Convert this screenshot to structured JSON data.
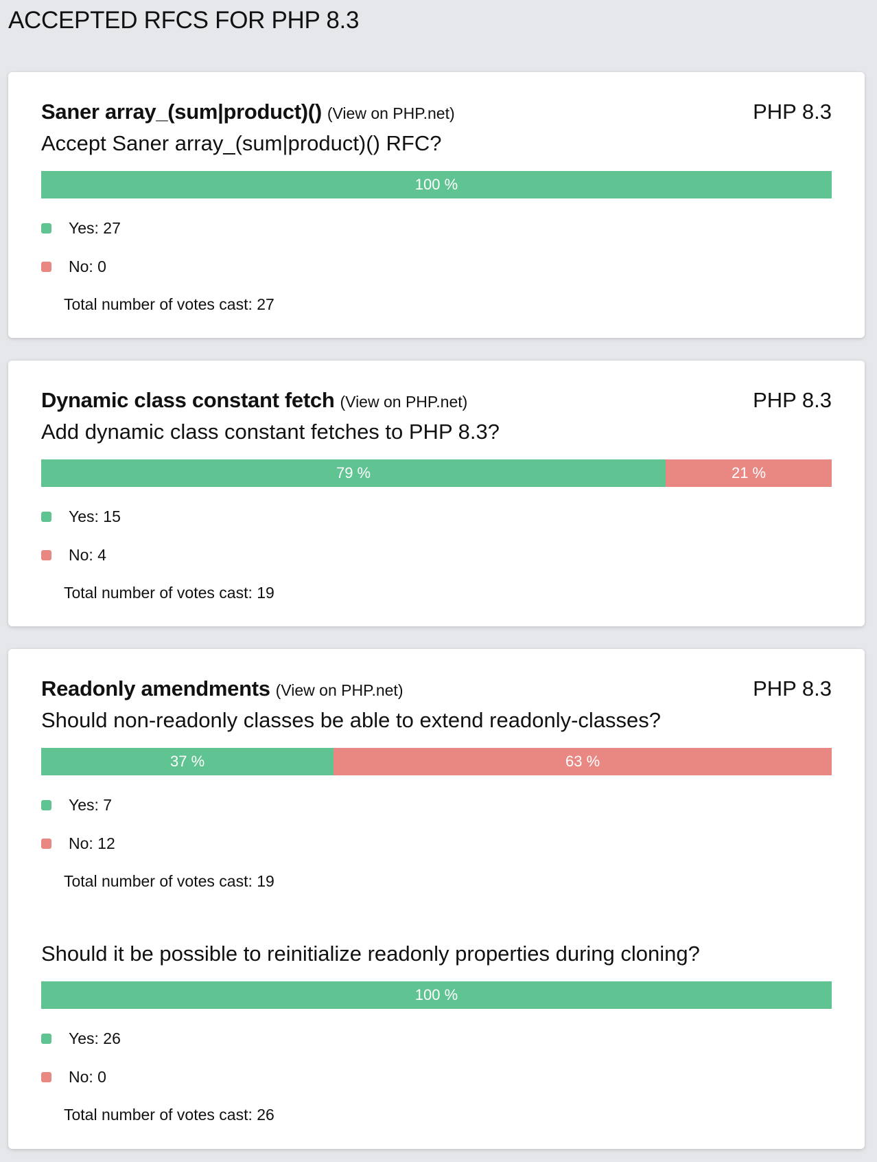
{
  "page": {
    "title": "ACCEPTED RFCS FOR PHP 8.3"
  },
  "colors": {
    "background": "#e5e7eb",
    "yes": "#60c392",
    "no": "#e98783",
    "card": "#ffffff"
  },
  "icons": {
    "yes_marker": "green-square",
    "no_marker": "red-square"
  },
  "rfcs": [
    {
      "name": "Saner array_(sum|product)()",
      "link_label": "(View on PHP.net)",
      "version": "PHP 8.3",
      "votes": [
        {
          "question": "Accept Saner array_(sum|product)() RFC?",
          "yes_percent": 100,
          "no_percent": 0,
          "yes_percent_label": "100 %",
          "no_percent_label": "",
          "yes_label": "Yes: 27",
          "no_label": "No: 0",
          "total_label": "Total number of votes cast: 27"
        }
      ]
    },
    {
      "name": "Dynamic class constant fetch",
      "link_label": "(View on PHP.net)",
      "version": "PHP 8.3",
      "votes": [
        {
          "question": "Add dynamic class constant fetches to PHP 8.3?",
          "yes_percent": 79,
          "no_percent": 21,
          "yes_percent_label": "79 %",
          "no_percent_label": "21 %",
          "yes_label": "Yes: 15",
          "no_label": "No: 4",
          "total_label": "Total number of votes cast: 19"
        }
      ]
    },
    {
      "name": "Readonly amendments",
      "link_label": "(View on PHP.net)",
      "version": "PHP 8.3",
      "votes": [
        {
          "question": "Should non-readonly classes be able to extend readonly-classes?",
          "yes_percent": 37,
          "no_percent": 63,
          "yes_percent_label": "37 %",
          "no_percent_label": "63 %",
          "yes_label": "Yes: 7",
          "no_label": "No: 12",
          "total_label": "Total number of votes cast: 19"
        },
        {
          "question": "Should it be possible to reinitialize readonly properties during cloning?",
          "yes_percent": 100,
          "no_percent": 0,
          "yes_percent_label": "100 %",
          "no_percent_label": "",
          "yes_label": "Yes: 26",
          "no_label": "No: 0",
          "total_label": "Total number of votes cast: 26"
        }
      ]
    }
  ]
}
